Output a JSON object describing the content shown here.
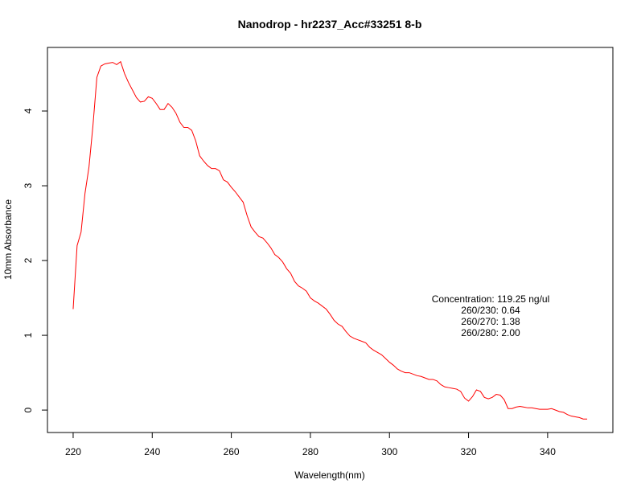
{
  "chart_data": {
    "type": "line",
    "title": "Nanodrop - hr2237_Acc#33251 8-b",
    "xlabel": "Wavelength(nm)",
    "ylabel": "10mm Absorbance",
    "xlim": [
      213.5,
      356.5
    ],
    "ylim": [
      -0.3,
      4.85
    ],
    "x_ticks": [
      220,
      240,
      260,
      280,
      300,
      320,
      340
    ],
    "y_ticks": [
      0,
      1,
      2,
      3,
      4
    ],
    "grid": false,
    "line_color": "#ff0000",
    "annotations": [
      "Concentration: 119.25 ng/ul",
      "260/230: 0.64",
      "260/270: 1.38",
      "260/280: 2.00"
    ],
    "series": [
      {
        "x": [
          220,
          221,
          222,
          223,
          224,
          225,
          226,
          227,
          228,
          229,
          230,
          231,
          232,
          233,
          234,
          235,
          236,
          237,
          238,
          239,
          240,
          241,
          242,
          243,
          244,
          245,
          246,
          247,
          248,
          249,
          250,
          251,
          252,
          253,
          254,
          255,
          256,
          257,
          258,
          259,
          260,
          261,
          262,
          263,
          264,
          265,
          266,
          267,
          268,
          269,
          270,
          271,
          272,
          273,
          274,
          275,
          276,
          277,
          278,
          279,
          280,
          281,
          282,
          283,
          284,
          285,
          286,
          287,
          288,
          289,
          290,
          291,
          292,
          293,
          294,
          295,
          296,
          297,
          298,
          299,
          300,
          301,
          302,
          303,
          304,
          305,
          306,
          307,
          308,
          309,
          310,
          311,
          312,
          313,
          314,
          315,
          316,
          317,
          318,
          319,
          320,
          321,
          322,
          323,
          324,
          325,
          326,
          327,
          328,
          329,
          330,
          331,
          332,
          333,
          334,
          335,
          336,
          337,
          338,
          339,
          340,
          341,
          342,
          343,
          344,
          345,
          346,
          347,
          348,
          349,
          350
        ],
        "y": [
          1.35,
          2.2,
          2.38,
          2.9,
          3.25,
          3.8,
          4.45,
          4.6,
          4.63,
          4.64,
          4.65,
          4.62,
          4.66,
          4.5,
          4.38,
          4.28,
          4.18,
          4.12,
          4.13,
          4.19,
          4.17,
          4.1,
          4.02,
          4.02,
          4.1,
          4.05,
          3.97,
          3.85,
          3.78,
          3.78,
          3.74,
          3.6,
          3.4,
          3.33,
          3.27,
          3.23,
          3.23,
          3.2,
          3.08,
          3.05,
          2.98,
          2.92,
          2.85,
          2.78,
          2.6,
          2.45,
          2.38,
          2.32,
          2.3,
          2.24,
          2.17,
          2.08,
          2.04,
          1.98,
          1.89,
          1.83,
          1.72,
          1.66,
          1.63,
          1.59,
          1.5,
          1.46,
          1.43,
          1.39,
          1.35,
          1.28,
          1.2,
          1.15,
          1.12,
          1.05,
          0.99,
          0.96,
          0.94,
          0.92,
          0.9,
          0.84,
          0.8,
          0.77,
          0.74,
          0.69,
          0.64,
          0.6,
          0.55,
          0.52,
          0.5,
          0.5,
          0.48,
          0.46,
          0.45,
          0.43,
          0.41,
          0.41,
          0.39,
          0.34,
          0.31,
          0.3,
          0.29,
          0.28,
          0.25,
          0.16,
          0.12,
          0.18,
          0.27,
          0.25,
          0.17,
          0.15,
          0.17,
          0.21,
          0.2,
          0.14,
          0.02,
          0.02,
          0.04,
          0.05,
          0.04,
          0.03,
          0.03,
          0.02,
          0.01,
          0.01,
          0.01,
          0.02,
          0.0,
          -0.02,
          -0.03,
          -0.06,
          -0.08,
          -0.09,
          -0.1,
          -0.12,
          -0.12
        ]
      }
    ]
  }
}
